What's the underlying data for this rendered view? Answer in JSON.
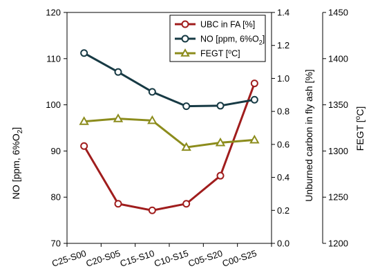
{
  "chart_data": {
    "type": "line",
    "categories": [
      "C25-S00",
      "C20-S05",
      "C15-S10",
      "C10-S15",
      "C05-S20",
      "C00-S25"
    ],
    "axes": {
      "left": {
        "label_main": "NO [ppm, 6%O",
        "label_sub": "2",
        "label_end": "]",
        "ylim": [
          70,
          120
        ],
        "ticks": [
          "70",
          "80",
          "90",
          "100",
          "110",
          "120"
        ]
      },
      "right1": {
        "label": "Unburned carbon in fly ash [%]",
        "ylim": [
          0.0,
          1.4
        ],
        "ticks": [
          "0.0",
          "0.2",
          "0.4",
          "0.6",
          "0.8",
          "1.0",
          "1.2",
          "1.4"
        ]
      },
      "right2": {
        "label_main": "FEGT [",
        "label_sup": "o",
        "label_end": "C]",
        "ylim": [
          1200,
          1450
        ],
        "ticks": [
          "1200",
          "1250",
          "1300",
          "1350",
          "1400",
          "1450"
        ]
      }
    },
    "series": [
      {
        "name": "UBC in FA [%]",
        "legend_main": "UBC in FA [%]",
        "axis": "right1",
        "marker": "circle",
        "color": "#a01d1d",
        "values": [
          0.59,
          0.24,
          0.2,
          0.24,
          0.41,
          0.97
        ]
      },
      {
        "name": "NO [ppm, 6%O2]",
        "legend_main": "NO [ppm, 6%O",
        "legend_sub": "2",
        "legend_end": "]",
        "axis": "left",
        "marker": "circle",
        "color": "#173a44",
        "values": [
          111.2,
          107.1,
          102.8,
          99.7,
          99.8,
          101.1
        ]
      },
      {
        "name": "FEGT [oC]",
        "legend_main": "FEGT [",
        "legend_sup": "o",
        "legend_end": "C]",
        "axis": "right2",
        "marker": "triangle",
        "color": "#8c8c1c",
        "values": [
          1332,
          1335,
          1333,
          1304,
          1309,
          1312
        ]
      }
    ],
    "legend_position": "top-right"
  }
}
